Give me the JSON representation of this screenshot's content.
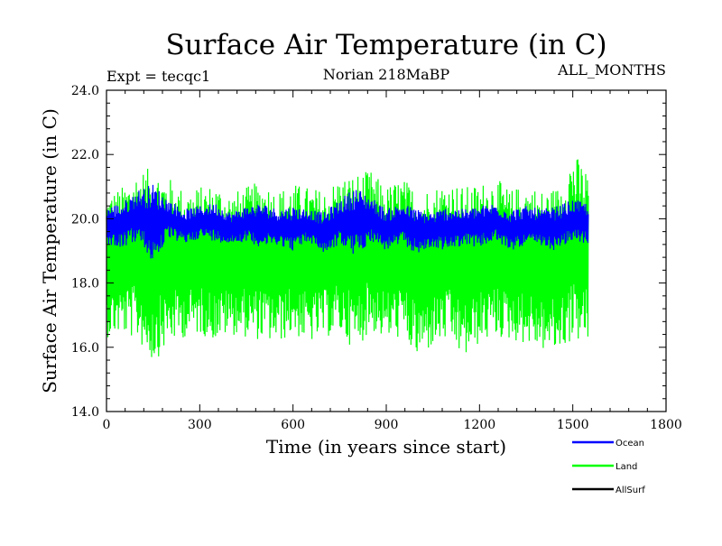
{
  "chart_data": {
    "type": "line",
    "title": "Surface Air Temperature (in C)",
    "subtitle_left": "Expt = tecqc1",
    "subtitle_center": "Norian 218MaBP",
    "subtitle_right": "ALL_MONTHS",
    "xlabel": "Time (in years since start)",
    "ylabel": "Surface Air Temperature (in C)",
    "xlim": [
      0,
      1800
    ],
    "ylim": [
      14.0,
      24.0
    ],
    "x_ticks": [
      0,
      300,
      600,
      900,
      1200,
      1500,
      1800
    ],
    "x_tick_labels": [
      "0",
      "300",
      "600",
      "900",
      "1200",
      "1500",
      "1800"
    ],
    "y_ticks": [
      14.0,
      16.0,
      18.0,
      20.0,
      22.0,
      24.0
    ],
    "y_tick_labels": [
      "14.0",
      "16.0",
      "18.0",
      "20.0",
      "22.0",
      "24.0"
    ],
    "legend": [
      {
        "name": "Ocean",
        "color": "#0000ff"
      },
      {
        "name": "Land",
        "color": "#00ff00"
      },
      {
        "name": "AllSurf",
        "color": "#000000"
      }
    ],
    "series": [
      {
        "name": "Land",
        "color": "#00ff00",
        "x_range": [
          0,
          1550
        ],
        "x": [
          0,
          50,
          100,
          150,
          200,
          250,
          300,
          350,
          400,
          450,
          500,
          550,
          600,
          650,
          700,
          750,
          800,
          850,
          900,
          950,
          1000,
          1050,
          1100,
          1150,
          1200,
          1250,
          1300,
          1350,
          1400,
          1450,
          1500,
          1550
        ],
        "max": [
          20.8,
          21.0,
          21.5,
          21.6,
          21.3,
          20.9,
          21.0,
          21.1,
          20.8,
          21.0,
          21.2,
          20.9,
          21.1,
          21.0,
          20.9,
          21.3,
          21.4,
          21.5,
          21.0,
          21.3,
          20.9,
          21.0,
          21.2,
          21.0,
          21.1,
          21.3,
          20.9,
          21.1,
          20.9,
          21.0,
          22.1,
          21.5
        ],
        "min": [
          16.3,
          16.4,
          16.2,
          15.5,
          16.1,
          16.3,
          16.4,
          16.2,
          16.4,
          16.3,
          16.2,
          16.1,
          16.4,
          16.1,
          16.3,
          16.4,
          15.9,
          16.5,
          16.2,
          16.3,
          15.6,
          16.0,
          16.2,
          15.6,
          16.1,
          16.3,
          16.2,
          16.1,
          15.9,
          15.8,
          16.2,
          16.1
        ]
      },
      {
        "name": "Ocean",
        "color": "#0000ff",
        "x_range": [
          0,
          1550
        ],
        "x": [
          0,
          50,
          100,
          150,
          200,
          250,
          300,
          350,
          400,
          450,
          500,
          550,
          600,
          650,
          700,
          750,
          800,
          850,
          900,
          950,
          1000,
          1050,
          1100,
          1150,
          1200,
          1250,
          1300,
          1350,
          1400,
          1450,
          1500,
          1550
        ],
        "max": [
          20.4,
          20.5,
          20.9,
          21.1,
          20.6,
          20.3,
          20.4,
          20.5,
          20.2,
          20.4,
          20.5,
          20.3,
          20.4,
          20.3,
          20.2,
          20.6,
          21.0,
          20.7,
          20.3,
          20.5,
          20.3,
          20.2,
          20.4,
          20.3,
          20.4,
          20.5,
          20.3,
          20.4,
          20.3,
          20.4,
          20.6,
          20.5
        ],
        "min": [
          19.2,
          19.1,
          19.3,
          18.6,
          19.4,
          19.2,
          19.4,
          19.3,
          19.2,
          19.3,
          19.1,
          19.2,
          19.0,
          19.3,
          18.9,
          19.2,
          18.8,
          19.3,
          19.0,
          19.2,
          18.9,
          19.1,
          19.0,
          19.2,
          19.1,
          19.3,
          19.0,
          19.2,
          19.1,
          19.0,
          19.3,
          19.2
        ]
      },
      {
        "name": "AllSurf",
        "color": "#000000",
        "x_range": [
          0,
          1550
        ],
        "x": [],
        "values": []
      }
    ]
  }
}
